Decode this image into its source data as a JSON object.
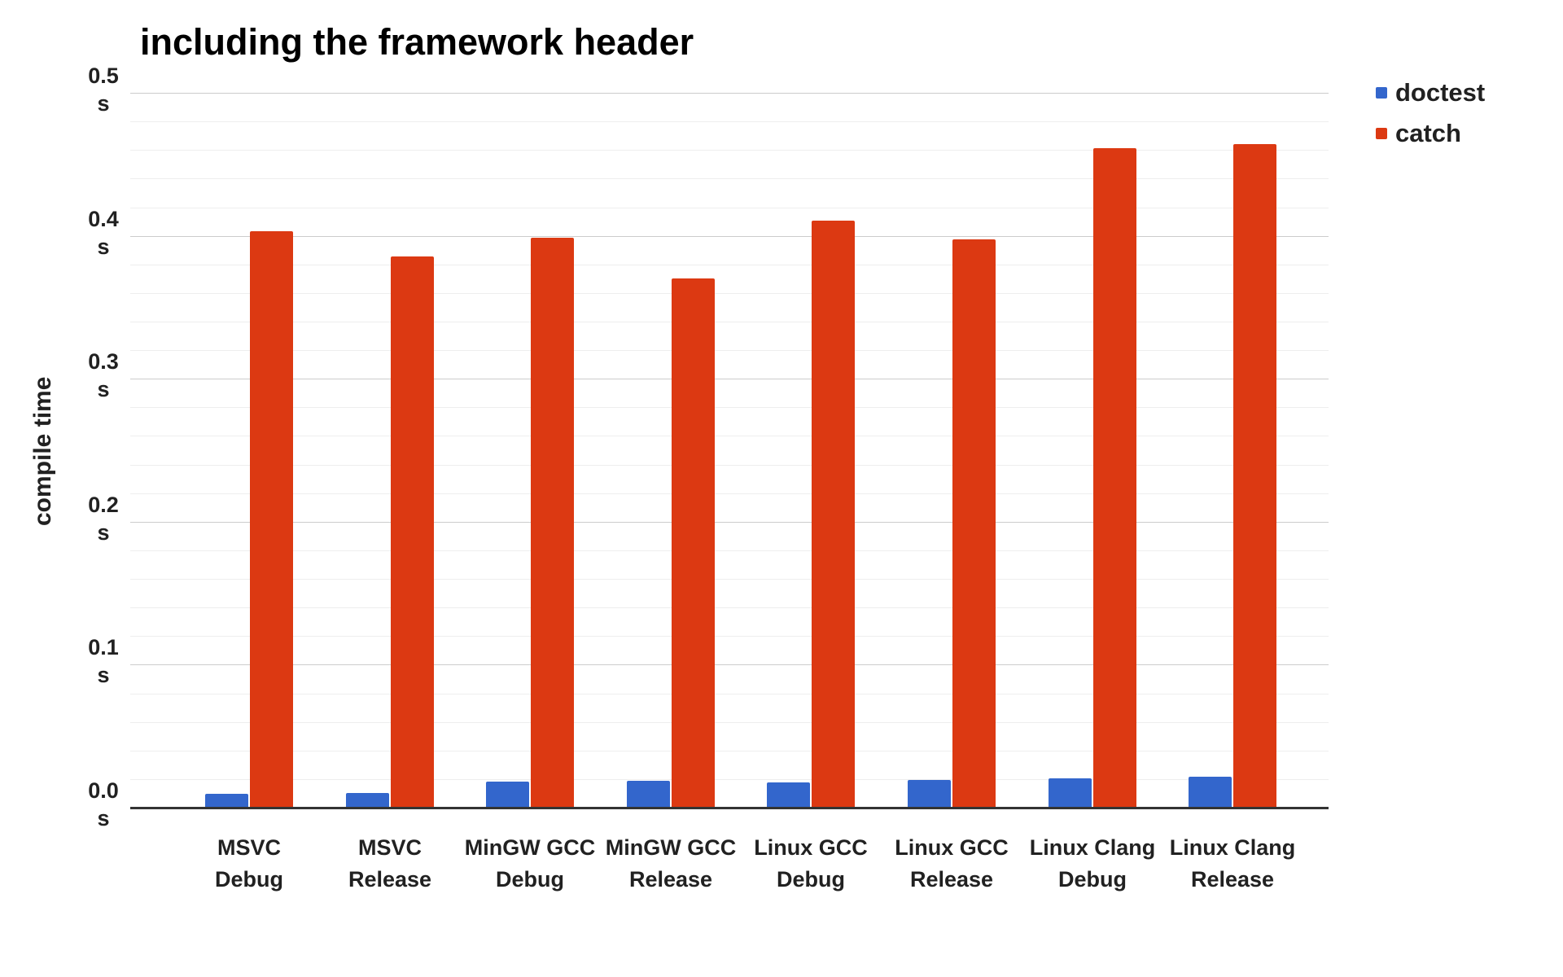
{
  "title": "including the framework header",
  "y_axis": {
    "label": "compile time",
    "unit": "s",
    "ticks": [
      0.0,
      0.1,
      0.2,
      0.3,
      0.4,
      0.5
    ]
  },
  "legend": [
    {
      "name": "doctest",
      "color": "#3366CC"
    },
    {
      "name": "catch",
      "color": "#DC3912"
    }
  ],
  "chart_data": {
    "type": "bar",
    "title": "including the framework header",
    "xlabel": "",
    "ylabel": "compile time",
    "unit": "s",
    "categories": [
      "MSVC Debug",
      "MSVC Release",
      "MinGW GCC Debug",
      "MinGW GCC Release",
      "Linux GCC Debug",
      "Linux GCC Release",
      "Linux Clang Debug",
      "Linux Clang Release"
    ],
    "category_lines": [
      [
        "MSVC",
        "Debug"
      ],
      [
        "MSVC",
        "Release"
      ],
      [
        "MinGW GCC",
        "Debug"
      ],
      [
        "MinGW GCC",
        "Release"
      ],
      [
        "Linux GCC",
        "Debug"
      ],
      [
        "Linux GCC",
        "Release"
      ],
      [
        "Linux Clang",
        "Debug"
      ],
      [
        "Linux Clang",
        "Release"
      ]
    ],
    "series": [
      {
        "name": "doctest",
        "color": "#3366CC",
        "values": [
          0.01,
          0.011,
          0.019,
          0.0195,
          0.018,
          0.02,
          0.021,
          0.022
        ]
      },
      {
        "name": "catch",
        "color": "#DC3912",
        "values": [
          0.404,
          0.386,
          0.399,
          0.371,
          0.411,
          0.398,
          0.462,
          0.465
        ]
      }
    ],
    "ylim": [
      0,
      0.5
    ],
    "ytick_step_major": 0.1,
    "ytick_step_minor": 0.02,
    "grid": true,
    "legend_position": "top-right",
    "colors": {
      "gridline_major": "#cccccc",
      "gridline_minor": "#eeeeee",
      "axis_baseline": "#333333",
      "text": "#212121"
    }
  }
}
